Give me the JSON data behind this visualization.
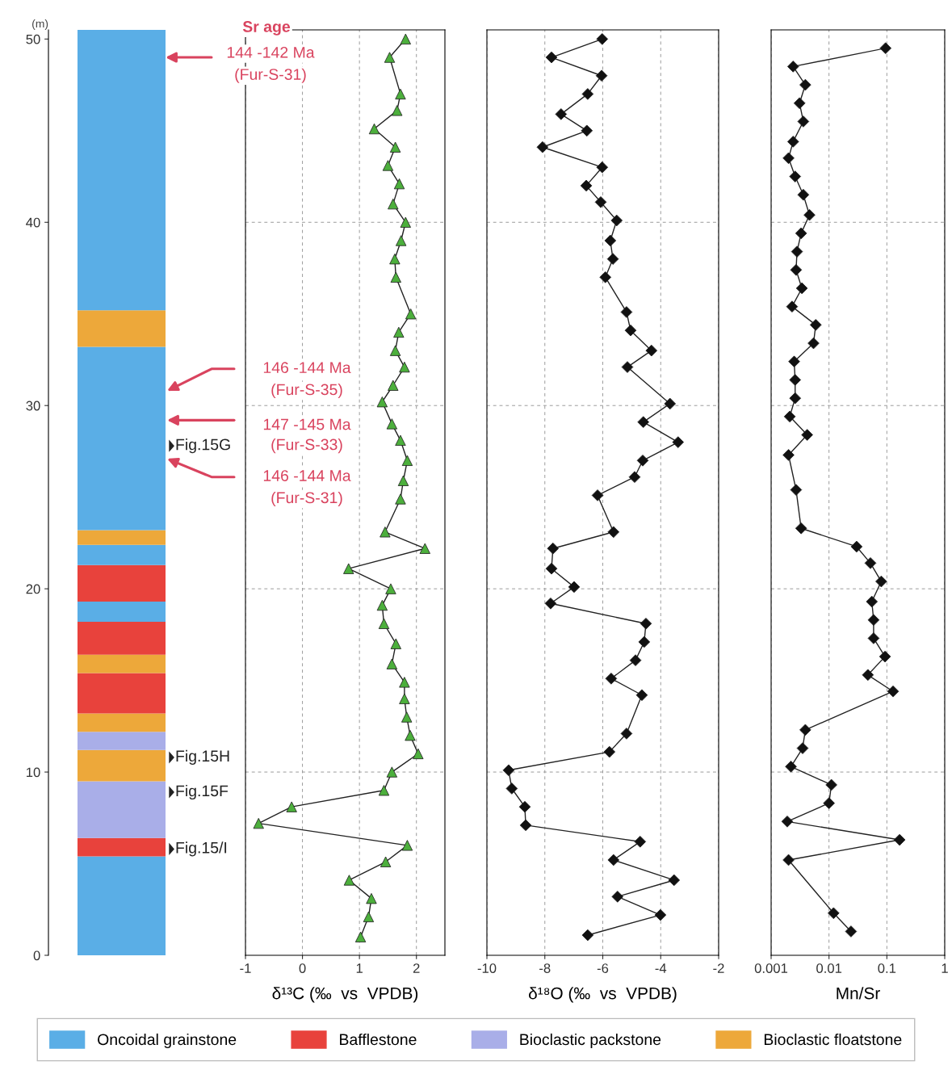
{
  "chart_data": [
    {
      "type": "bar",
      "stacked": true,
      "categories": [
        null
      ],
      "ylabel": "(m)",
      "ylim": [
        0,
        50.5
      ],
      "yticks": [
        0,
        10,
        20,
        30,
        40,
        50
      ],
      "tick_labels": "y",
      "legend": "bottom",
      "series": [
        {
          "name": "Oncoidal grainstone",
          "color": "#5aaee6",
          "values": [
            5.4
          ]
        },
        {
          "name": "Bafflestone",
          "color": "#e8423c",
          "values": [
            1.0
          ]
        },
        {
          "name": "Bioclastic packstone",
          "color": "#a9aee8",
          "values": [
            3.1
          ]
        },
        {
          "name": "Bioclastic floatstone",
          "color": "#eda83a",
          "values": [
            1.7
          ]
        },
        {
          "color": "#a9aee8",
          "values": [
            1.0
          ]
        },
        {
          "color": "#eda83a",
          "values": [
            1.0
          ]
        },
        {
          "color": "#e8423c",
          "values": [
            2.2
          ]
        },
        {
          "color": "#eda83a",
          "values": [
            1.0
          ]
        },
        {
          "color": "#e8423c",
          "values": [
            1.8
          ]
        },
        {
          "color": "#5aaee6",
          "values": [
            1.1
          ]
        },
        {
          "color": "#e8423c",
          "values": [
            2.0
          ]
        },
        {
          "color": "#5aaee6",
          "values": [
            1.1
          ]
        },
        {
          "color": "#eda83a",
          "values": [
            0.8
          ]
        },
        {
          "color": "#5aaee6",
          "values": [
            10.0
          ]
        },
        {
          "color": "#eda83a",
          "values": [
            2.0
          ]
        },
        {
          "color": "#5aaee6",
          "values": [
            15.3
          ]
        }
      ],
      "annotations": [
        "Sr age",
        "144 -142 Ma",
        "(Fur-S-31)",
        "146 -144 Ma",
        "(Fur-S-35)",
        "147 -145 Ma",
        "(Fur-S-33)",
        "146 -144 Ma",
        "(Fur-S-31)",
        "Fig.15G",
        "Fig.15H",
        "Fig.15F",
        "Fig.15/I"
      ]
    },
    {
      "type": "line",
      "orientation": "horizontal",
      "xlabel": "δ¹³C (‰  vs  VPDB)",
      "xlim": [
        -1,
        2.5
      ],
      "xticks": [
        -1,
        0,
        1,
        2
      ],
      "ylim": [
        0,
        50.5
      ],
      "tick_labels": "x",
      "grid": true,
      "marker": "triangle",
      "line_style": "solid",
      "series": [
        {
          "color": "#4caf3c",
          "x": [
            50.0,
            49.0,
            47.0,
            46.1,
            45.1,
            44.1,
            43.1,
            42.1,
            41.0,
            40.0,
            39.0,
            38.0,
            37.0,
            35.0,
            34.0,
            33.0,
            32.1,
            31.1,
            30.2,
            29.0,
            28.1,
            27.0,
            25.9,
            24.9,
            23.1,
            22.2,
            21.1,
            20.0,
            19.1,
            18.1,
            17.0,
            15.9,
            14.9,
            14.0,
            13.0,
            12.0,
            11.0,
            10.0,
            9.0,
            8.1,
            7.2,
            6.0,
            5.1,
            4.1,
            3.1,
            2.1,
            1.0
          ],
          "values": [
            1.81,
            1.53,
            1.72,
            1.66,
            1.26,
            1.63,
            1.5,
            1.7,
            1.59,
            1.81,
            1.73,
            1.62,
            1.64,
            1.9,
            1.69,
            1.63,
            1.79,
            1.59,
            1.4,
            1.57,
            1.72,
            1.84,
            1.77,
            1.72,
            1.45,
            2.15,
            0.81,
            1.55,
            1.4,
            1.43,
            1.64,
            1.57,
            1.79,
            1.79,
            1.83,
            1.89,
            2.03,
            1.57,
            1.43,
            -0.19,
            -0.77,
            1.84,
            1.46,
            0.82,
            1.21,
            1.16,
            1.02
          ]
        }
      ]
    },
    {
      "type": "line",
      "orientation": "horizontal",
      "xlabel": "δ¹⁸O (‰  vs  VPDB)",
      "xlim": [
        -10,
        -2
      ],
      "xticks": [
        -10,
        -8,
        -6,
        -4,
        -2
      ],
      "ylim": [
        0,
        50.5
      ],
      "tick_labels": "x",
      "grid": true,
      "marker": "diamond",
      "line_style": "solid",
      "series": [
        {
          "color": "#111111",
          "x": [
            50.0,
            49.0,
            48.0,
            47.0,
            45.9,
            45.0,
            44.1,
            43.0,
            42.0,
            41.1,
            40.1,
            39.0,
            38.0,
            37.0,
            35.1,
            34.1,
            33.0,
            32.1,
            30.1,
            29.1,
            28.0,
            27.0,
            26.1,
            25.1,
            23.1,
            22.2,
            21.1,
            20.1,
            19.2,
            18.1,
            17.1,
            16.1,
            15.1,
            14.2,
            12.1,
            11.1,
            10.1,
            9.1,
            8.1,
            7.1,
            6.2,
            5.2,
            4.1,
            3.2,
            2.2,
            1.1
          ],
          "values": [
            -6.02,
            -7.77,
            -6.04,
            -6.52,
            -7.44,
            -6.55,
            -8.08,
            -6.02,
            -6.57,
            -6.07,
            -5.52,
            -5.74,
            -5.65,
            -5.91,
            -5.18,
            -5.04,
            -4.32,
            -5.15,
            -3.68,
            -4.6,
            -3.4,
            -4.62,
            -4.9,
            -6.18,
            -5.63,
            -7.72,
            -7.77,
            -6.99,
            -7.8,
            -4.51,
            -4.57,
            -4.87,
            -5.71,
            -4.65,
            -5.18,
            -5.77,
            -9.25,
            -9.14,
            -8.69,
            -8.66,
            -4.71,
            -5.63,
            -3.54,
            -5.49,
            -4.01,
            -6.52
          ]
        }
      ]
    },
    {
      "type": "line",
      "orientation": "horizontal",
      "log": "x",
      "xlabel": "Mn/Sr",
      "xlim": [
        0.001,
        1
      ],
      "xticks": [
        0.001,
        0.01,
        0.1,
        1
      ],
      "ylim": [
        0,
        50.5
      ],
      "tick_labels": "x",
      "grid": true,
      "marker": "diamond",
      "line_style": "solid",
      "series": [
        {
          "color": "#111111",
          "x": [
            49.5,
            48.5,
            47.5,
            46.5,
            45.5,
            44.4,
            43.5,
            42.5,
            41.5,
            40.4,
            39.4,
            38.4,
            37.4,
            36.4,
            35.4,
            34.4,
            33.4,
            32.4,
            31.4,
            30.4,
            29.4,
            28.4,
            27.3,
            25.4,
            23.3,
            22.3,
            21.4,
            20.4,
            19.3,
            18.3,
            17.3,
            16.3,
            15.3,
            14.4,
            12.3,
            11.3,
            10.3,
            9.3,
            8.3,
            7.3,
            6.3,
            5.2,
            2.3,
            1.3
          ],
          "values": [
            0.095,
            0.0024,
            0.0039,
            0.0031,
            0.0036,
            0.0024,
            0.002,
            0.0026,
            0.0036,
            0.0046,
            0.0033,
            0.0028,
            0.0027,
            0.0034,
            0.0023,
            0.0059,
            0.0054,
            0.0025,
            0.0026,
            0.0026,
            0.0021,
            0.0042,
            0.002,
            0.0027,
            0.0033,
            0.03,
            0.052,
            0.08,
            0.055,
            0.059,
            0.059,
            0.093,
            0.047,
            0.128,
            0.0039,
            0.0035,
            0.0022,
            0.011,
            0.01,
            0.0019,
            0.166,
            0.002,
            0.012,
            0.024
          ]
        }
      ]
    }
  ]
}
